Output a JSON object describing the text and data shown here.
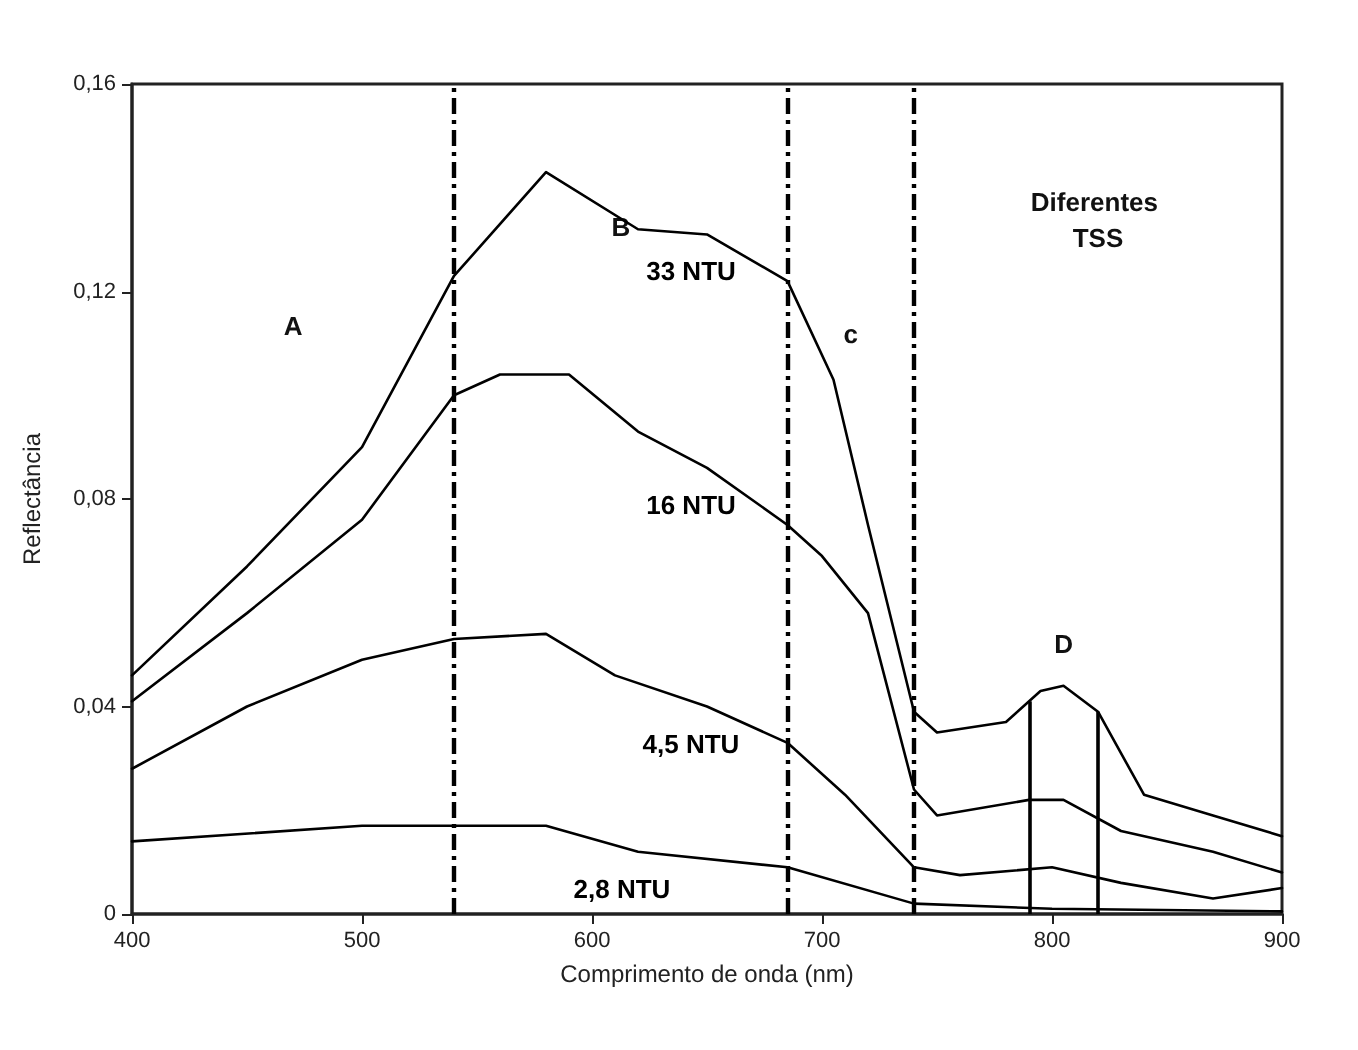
{
  "chart_data": {
    "type": "line",
    "xlabel": "Comprimento de onda (nm)",
    "ylabel": "Reflectância",
    "xlim": [
      400,
      900
    ],
    "xticks": [
      400,
      500,
      600,
      700,
      800,
      900
    ],
    "ylim": [
      0,
      0.16
    ],
    "yticks": [
      {
        "value": 0,
        "label": "0"
      },
      {
        "value": 0.04,
        "label": "0,04"
      },
      {
        "value": 0.08,
        "label": "0,08"
      },
      {
        "value": 0.12,
        "label": "0,12"
      },
      {
        "value": 0.16,
        "label": "0,16"
      }
    ],
    "grid": false,
    "legend": false,
    "marker": "none",
    "line_style": "solid",
    "series": [
      {
        "name": "33 NTU",
        "color": "#000000",
        "x": [
          400,
          450,
          500,
          540,
          580,
          620,
          650,
          685,
          705,
          720,
          740,
          750,
          780,
          795,
          805,
          820,
          840,
          870,
          900
        ],
        "values": [
          0.046,
          0.067,
          0.09,
          0.123,
          0.143,
          0.132,
          0.131,
          0.122,
          0.103,
          0.075,
          0.039,
          0.035,
          0.037,
          0.043,
          0.044,
          0.039,
          0.023,
          0.019,
          0.015
        ]
      },
      {
        "name": "16 NTU",
        "color": "#000000",
        "x": [
          400,
          450,
          500,
          540,
          560,
          590,
          620,
          650,
          685,
          700,
          720,
          740,
          750,
          790,
          805,
          830,
          870,
          900
        ],
        "values": [
          0.041,
          0.058,
          0.076,
          0.1,
          0.104,
          0.104,
          0.093,
          0.086,
          0.075,
          0.069,
          0.058,
          0.024,
          0.019,
          0.022,
          0.022,
          0.016,
          0.012,
          0.008
        ]
      },
      {
        "name": "4,5 NTU",
        "color": "#000000",
        "x": [
          400,
          450,
          500,
          540,
          580,
          610,
          650,
          685,
          710,
          740,
          760,
          800,
          830,
          870,
          900
        ],
        "values": [
          0.028,
          0.04,
          0.049,
          0.053,
          0.054,
          0.046,
          0.04,
          0.033,
          0.023,
          0.009,
          0.0075,
          0.009,
          0.006,
          0.003,
          0.005
        ]
      },
      {
        "name": "2,8 NTU",
        "color": "#000000",
        "x": [
          400,
          500,
          580,
          620,
          685,
          740,
          800,
          900
        ],
        "values": [
          0.014,
          0.017,
          0.017,
          0.012,
          0.009,
          0.002,
          0.001,
          0.0005
        ]
      }
    ],
    "ref_lines": [
      {
        "axis": "x",
        "value": 540,
        "line_style": "dashed"
      },
      {
        "axis": "x",
        "value": 685,
        "line_style": "dashed"
      },
      {
        "axis": "x",
        "value": 740,
        "line_style": "dashed"
      },
      {
        "axis": "x",
        "value": 790,
        "line_style": "solid"
      },
      {
        "axis": "x",
        "value": 820,
        "line_style": "solid"
      }
    ],
    "annotations": [
      "A",
      "B",
      "c",
      "D",
      "Diferentes TSS"
    ]
  }
}
